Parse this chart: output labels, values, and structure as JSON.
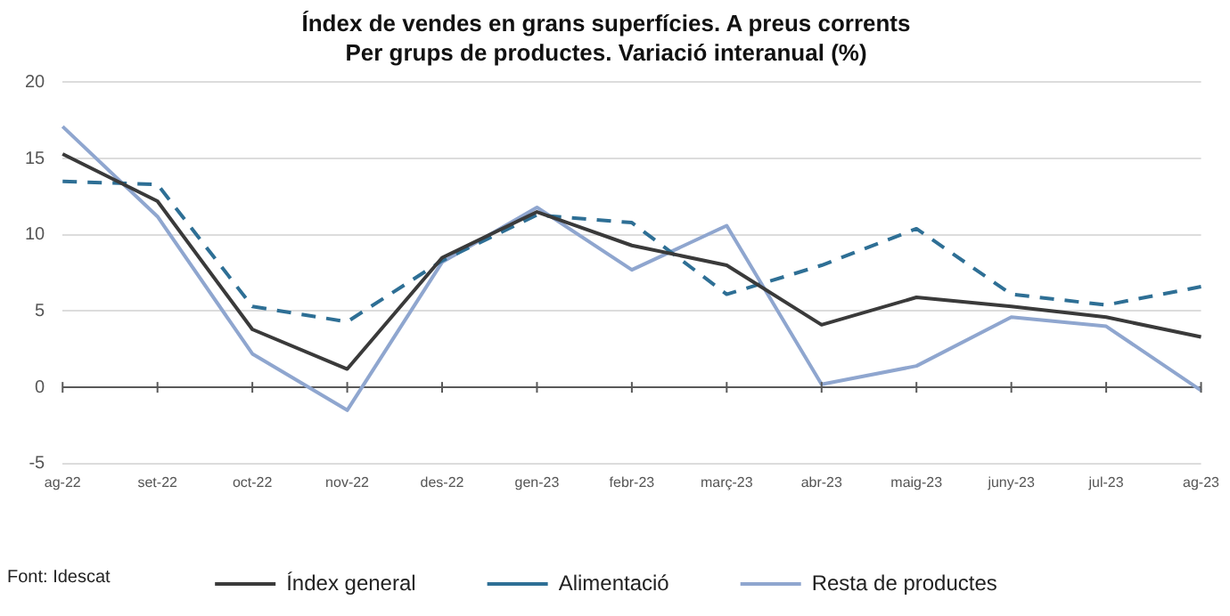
{
  "chart_data": {
    "type": "line",
    "title": "Índex de vendes en grans superfícies. A preus corrents",
    "subtitle": "Per grups de productes. Variació interanual (%)",
    "categories": [
      "ag-22",
      "set-22",
      "oct-22",
      "nov-22",
      "des-22",
      "gen-23",
      "febr-23",
      "març-23",
      "abr-23",
      "maig-23",
      "juny-23",
      "jul-23",
      "ag-23"
    ],
    "series": [
      {
        "name": "Índex general",
        "color": "#3a3a3a",
        "line_style": "solid",
        "values": [
          15.3,
          12.2,
          3.8,
          1.2,
          8.5,
          11.5,
          9.3,
          8.0,
          4.1,
          5.9,
          5.3,
          4.6,
          3.3
        ]
      },
      {
        "name": "Alimentació",
        "color": "#2e6f95",
        "line_style": "dashed",
        "values": [
          13.5,
          13.3,
          5.3,
          4.3,
          8.3,
          11.3,
          10.8,
          6.1,
          8.0,
          10.4,
          6.1,
          5.4,
          6.6
        ]
      },
      {
        "name": "Resta de productes",
        "color": "#8fa6cf",
        "line_style": "solid",
        "values": [
          17.1,
          11.2,
          2.2,
          -1.5,
          8.2,
          11.8,
          7.7,
          10.6,
          0.2,
          1.4,
          4.6,
          4.0,
          -0.2
        ]
      }
    ],
    "ylim": [
      -5,
      20
    ],
    "yticks": [
      -5,
      0,
      5,
      10,
      15,
      20
    ],
    "grid": "y",
    "legend": "bottom",
    "marker": "none",
    "annotations": [
      "Font: Idescat"
    ]
  }
}
